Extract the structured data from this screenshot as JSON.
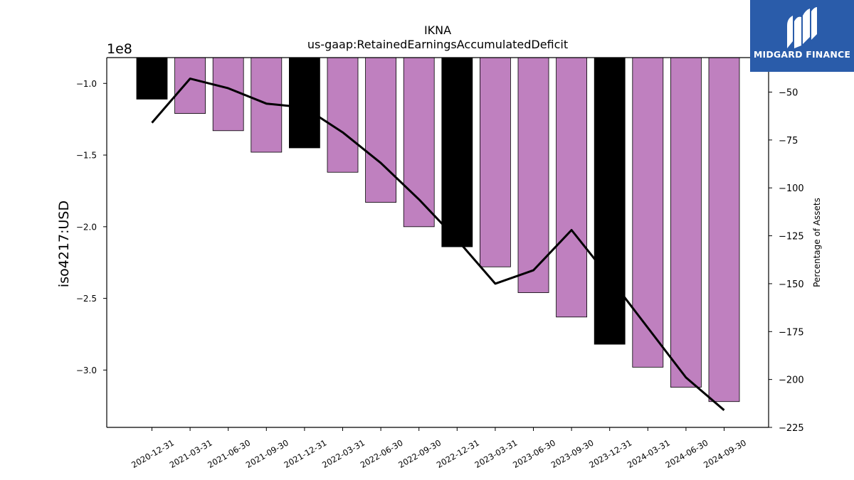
{
  "chart_data": {
    "type": "bar",
    "title": "IKNA",
    "subtitle": "us-gaap:RetainedEarningsAccumulatedDeficit",
    "ylabel": "iso4217:USD",
    "y2label": "Percentage of Assets",
    "offset_label": "1e8",
    "categories": [
      "2020-12-31",
      "2021-03-31",
      "2021-06-30",
      "2021-09-30",
      "2021-12-31",
      "2022-03-31",
      "2022-06-30",
      "2022-09-30",
      "2022-12-31",
      "2023-03-31",
      "2023-06-30",
      "2023-09-30",
      "2023-12-31",
      "2024-03-31",
      "2024-06-30",
      "2024-09-30"
    ],
    "series": [
      {
        "values": [
          -111000000,
          -121000000,
          -133000000,
          -148000000,
          -145000000,
          -162000000,
          -183000000,
          -200000000,
          -214000000,
          -228000000,
          -246000000,
          -263000000,
          -282000000,
          -298000000,
          -312000000,
          -322000000
        ],
        "colors": [
          "#000000",
          "#bf80bf",
          "#bf80bf",
          "#bf80bf",
          "#000000",
          "#bf80bf",
          "#bf80bf",
          "#bf80bf",
          "#000000",
          "#bf80bf",
          "#bf80bf",
          "#bf80bf",
          "#000000",
          "#bf80bf",
          "#bf80bf",
          "#bf80bf"
        ]
      },
      {
        "axis": "right",
        "type": "line",
        "color": "#000000",
        "values": [
          -66,
          -43,
          -48,
          -56,
          -58,
          -71,
          -87,
          -106,
          -127,
          -150,
          -143,
          -122,
          -147,
          -173,
          -199,
          -216
        ]
      }
    ],
    "ylim": [
      -340000000,
      -82000000
    ],
    "yticks": [
      -100000000,
      -150000000,
      -200000000,
      -250000000,
      -300000000
    ],
    "yticklabels": [
      "−1.0",
      "−1.5",
      "−2.0",
      "−2.5",
      "−3.0"
    ],
    "y2lim": [
      -225,
      -32
    ],
    "y2ticks": [
      -50,
      -75,
      -100,
      -125,
      -150,
      -175,
      -200,
      -225
    ],
    "y2ticklabels": [
      "−50",
      "−75",
      "−100",
      "−125",
      "−150",
      "−175",
      "−200",
      "−225"
    ],
    "grid": false
  },
  "logo": {
    "text": "MIDGARD FINANCE",
    "color": "#2a5caa"
  }
}
